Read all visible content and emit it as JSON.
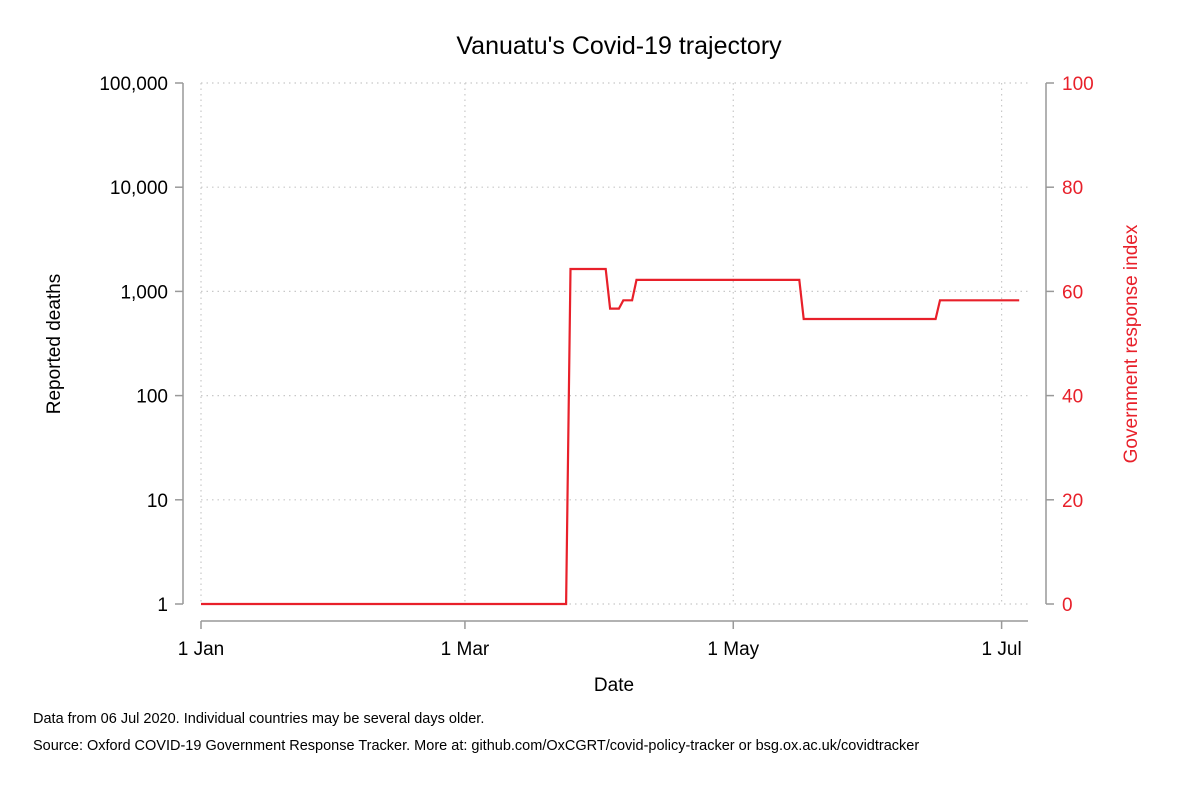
{
  "chart_data": {
    "type": "line",
    "title": "Vanuatu's Covid-19 trajectory",
    "xlabel": "Date",
    "ylabel_left": "Reported deaths",
    "ylabel_right": "Government response index",
    "x_ticks": [
      "1 Jan",
      "1 Mar",
      "1 May",
      "1 Jul"
    ],
    "x_tick_days": [
      0,
      60,
      121,
      182
    ],
    "x_range": [
      "2020-01-01",
      "2020-07-07"
    ],
    "left_axis": {
      "scale": "log",
      "range": [
        1,
        100000
      ],
      "ticks": [
        1,
        10,
        100,
        1000,
        10000,
        100000
      ],
      "tick_labels": [
        "1",
        "10",
        "100",
        "1,000",
        "10,000",
        "100,000"
      ]
    },
    "right_axis": {
      "scale": "linear",
      "range": [
        0,
        100
      ],
      "ticks": [
        0,
        20,
        40,
        60,
        80,
        100
      ],
      "tick_labels": [
        "0",
        "20",
        "40",
        "60",
        "80",
        "100"
      ],
      "color": "#e8202a"
    },
    "grid": true,
    "series": [
      {
        "axis": "right",
        "color": "#e8202a",
        "points": [
          [
            "2020-01-01",
            0
          ],
          [
            "2020-03-24",
            0
          ],
          [
            "2020-03-25",
            64.3
          ],
          [
            "2020-04-02",
            64.3
          ],
          [
            "2020-04-03",
            56.7
          ],
          [
            "2020-04-05",
            56.7
          ],
          [
            "2020-04-06",
            58.3
          ],
          [
            "2020-04-08",
            58.3
          ],
          [
            "2020-04-09",
            62.2
          ],
          [
            "2020-05-16",
            62.2
          ],
          [
            "2020-05-17",
            54.7
          ],
          [
            "2020-06-16",
            54.7
          ],
          [
            "2020-06-17",
            58.3
          ],
          [
            "2020-07-05",
            58.3
          ]
        ]
      }
    ]
  },
  "notes": {
    "data_date": "Data from 06 Jul 2020. Individual countries may be several days older.",
    "source": "Source: Oxford COVID-19 Government Response Tracker. More at: github.com/OxCGRT/covid-policy-tracker or bsg.ox.ac.uk/covidtracker"
  }
}
